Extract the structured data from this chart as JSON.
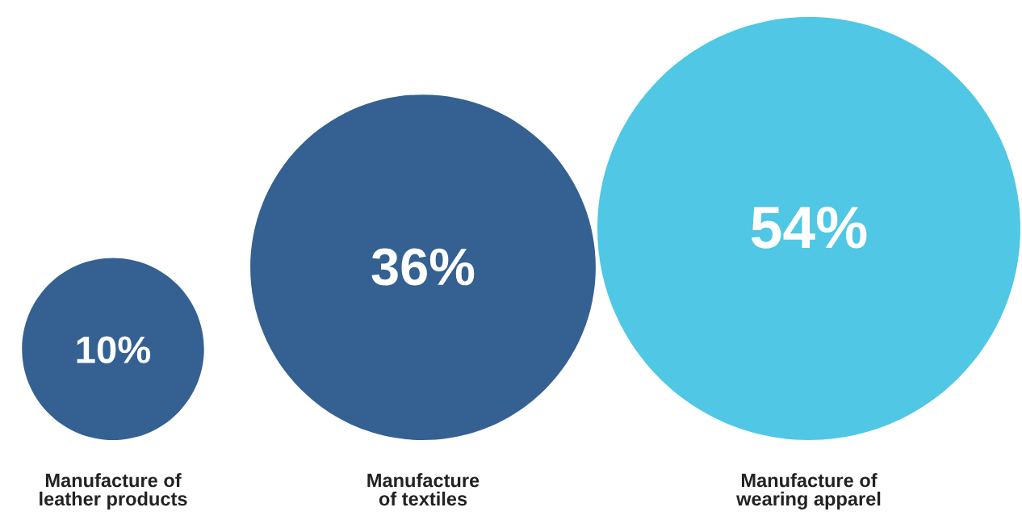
{
  "chart_data": {
    "type": "other",
    "categories": [
      "Manufacture of\nleather products",
      "Manufacture\nof textiles",
      "Manufacture of\nwearing apparel"
    ],
    "values": [
      10,
      36,
      54
    ],
    "colors": [
      "#356092",
      "#356092",
      "#4fc7e5"
    ],
    "value_labels": [
      "10%",
      "36%",
      "54%"
    ]
  }
}
